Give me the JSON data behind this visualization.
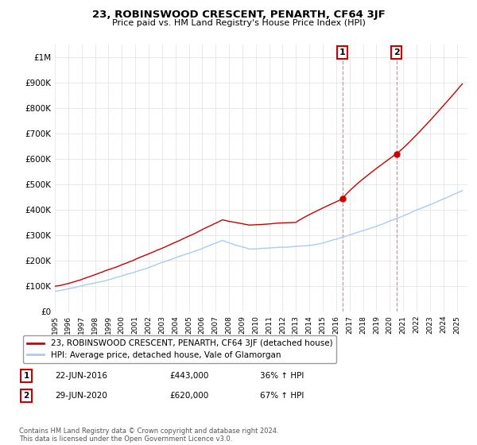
{
  "title": "23, ROBINSWOOD CRESCENT, PENARTH, CF64 3JF",
  "subtitle": "Price paid vs. HM Land Registry's House Price Index (HPI)",
  "ytick_values": [
    0,
    100000,
    200000,
    300000,
    400000,
    500000,
    600000,
    700000,
    800000,
    900000,
    1000000
  ],
  "ylim": [
    0,
    1050000
  ],
  "xlim_start": 1995.0,
  "xlim_end": 2025.8,
  "transaction1_date": 2016.47,
  "transaction1_price": 443000,
  "transaction2_date": 2020.49,
  "transaction2_price": 620000,
  "line_color_property": "#cc0000",
  "line_color_hpi": "#aaccee",
  "vline_color": "#ee8888",
  "legend_label_property": "23, ROBINSWOOD CRESCENT, PENARTH, CF64 3JF (detached house)",
  "legend_label_hpi": "HPI: Average price, detached house, Vale of Glamorgan",
  "annotation1_label": "1",
  "annotation1_date": "22-JUN-2016",
  "annotation1_price": "£443,000",
  "annotation1_hpi": "36% ↑ HPI",
  "annotation2_label": "2",
  "annotation2_date": "29-JUN-2020",
  "annotation2_price": "£620,000",
  "annotation2_hpi": "67% ↑ HPI",
  "footnote": "Contains HM Land Registry data © Crown copyright and database right 2024.\nThis data is licensed under the Open Government Licence v3.0.",
  "grid_color": "#e0e0e0",
  "background_color": "#ffffff"
}
